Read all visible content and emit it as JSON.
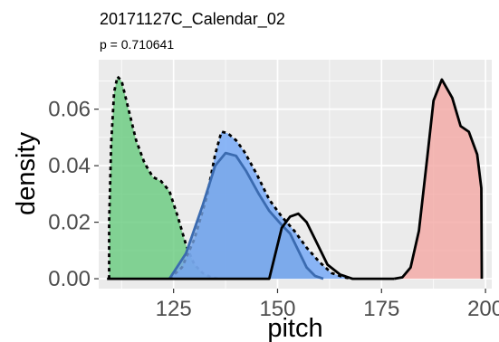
{
  "chart_data": {
    "type": "area",
    "title": "20171127C_Calendar_02",
    "subtitle": "p = 0.710641",
    "xlabel": "pitch",
    "ylabel": "density",
    "xlim": [
      107,
      201.5
    ],
    "ylim": [
      -0.0035,
      0.0775
    ],
    "x_ticks": [
      125,
      150,
      175,
      200
    ],
    "y_ticks": [
      0.0,
      0.02,
      0.04,
      0.06
    ],
    "x_tick_labels": [
      "125",
      "150",
      "175",
      "200"
    ],
    "y_tick_labels": [
      "0.00",
      "0.02",
      "0.04",
      "0.06"
    ],
    "grid": true,
    "legend": "none",
    "series": [
      {
        "fill": "#63c97a",
        "line": "dashed",
        "line_color": "#000000",
        "points": [
          [
            109.5,
            0.0
          ],
          [
            109.5,
            0.02
          ],
          [
            110,
            0.048
          ],
          [
            110.7,
            0.066
          ],
          [
            111.5,
            0.0715
          ],
          [
            112.5,
            0.07
          ],
          [
            114,
            0.061
          ],
          [
            116,
            0.049
          ],
          [
            118,
            0.041
          ],
          [
            120,
            0.036
          ],
          [
            122,
            0.0345
          ],
          [
            124,
            0.031
          ],
          [
            126,
            0.022
          ],
          [
            128,
            0.012
          ],
          [
            130,
            0.005
          ],
          [
            132,
            0.002
          ],
          [
            134,
            0.0005
          ],
          [
            136,
            0.0
          ]
        ]
      },
      {
        "fill": "#6da4f7",
        "line": "dashed",
        "line_color": "#000000",
        "points": [
          [
            124,
            0.0
          ],
          [
            127,
            0.004
          ],
          [
            130,
            0.014
          ],
          [
            133,
            0.029
          ],
          [
            135,
            0.044
          ],
          [
            136.5,
            0.052
          ],
          [
            138,
            0.0515
          ],
          [
            140,
            0.049
          ],
          [
            142,
            0.045
          ],
          [
            145,
            0.037
          ],
          [
            148,
            0.028
          ],
          [
            151,
            0.022
          ],
          [
            154,
            0.017
          ],
          [
            157,
            0.011
          ],
          [
            160,
            0.006
          ],
          [
            163,
            0.002
          ],
          [
            166,
            0.0005
          ],
          [
            168,
            0.0
          ]
        ]
      },
      {
        "fill": "#79a6e8",
        "line": "solid",
        "line_color": "#3b6bb0",
        "points": [
          [
            124,
            0.0
          ],
          [
            128,
            0.009
          ],
          [
            132,
            0.026
          ],
          [
            135,
            0.04
          ],
          [
            137.5,
            0.0445
          ],
          [
            140,
            0.0435
          ],
          [
            142.5,
            0.038
          ],
          [
            145.5,
            0.03
          ],
          [
            148,
            0.024
          ],
          [
            151,
            0.019
          ],
          [
            153,
            0.016
          ],
          [
            155,
            0.01
          ],
          [
            157,
            0.004
          ],
          [
            159,
            0.001
          ],
          [
            161,
            0.0
          ]
        ]
      },
      {
        "fill": "#f4a5a1",
        "line": "solid",
        "line_color": "#000000",
        "points": [
          [
            178,
            0.0
          ],
          [
            180,
            0.0005
          ],
          [
            182,
            0.004
          ],
          [
            184,
            0.017
          ],
          [
            186,
            0.043
          ],
          [
            187.5,
            0.063
          ],
          [
            189.5,
            0.0705
          ],
          [
            192,
            0.064
          ],
          [
            194,
            0.054
          ],
          [
            196,
            0.052
          ],
          [
            198,
            0.044
          ],
          [
            199,
            0.032
          ],
          [
            199.1,
            0.0
          ]
        ]
      },
      {
        "fill": "none",
        "line": "solid",
        "line_color": "#000000",
        "points": [
          [
            109,
            0.0
          ],
          [
            125,
            0.0
          ],
          [
            130,
            0.0
          ],
          [
            140,
            0.0
          ],
          [
            148,
            0.0
          ],
          [
            151,
            0.018
          ],
          [
            153,
            0.022
          ],
          [
            155,
            0.023
          ],
          [
            157,
            0.02
          ],
          [
            159,
            0.014
          ],
          [
            162,
            0.005
          ],
          [
            165,
            0.0015
          ],
          [
            168,
            0.0
          ],
          [
            178,
            0.0
          ]
        ]
      }
    ]
  }
}
